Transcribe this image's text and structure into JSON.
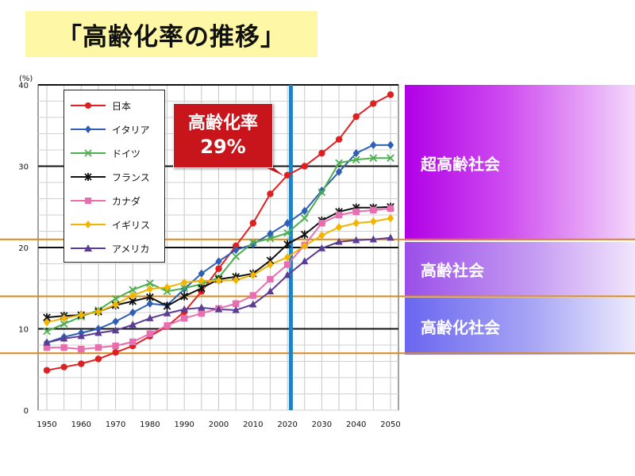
{
  "page": {
    "title": "「高齢化率の推移」"
  },
  "callout": {
    "title": "高齢化率",
    "value": "29%"
  },
  "bands": [
    {
      "label": "超高齢社会"
    },
    {
      "label": "高齢社会"
    },
    {
      "label": "高齢化社会"
    }
  ],
  "chart_data": {
    "type": "line",
    "ylabel": "(%)",
    "xlim": [
      1950,
      2050
    ],
    "ylim": [
      0,
      40
    ],
    "x_ticks": [
      1950,
      1960,
      1970,
      1980,
      1990,
      2000,
      2010,
      2020,
      2030,
      2040,
      2050
    ],
    "y_ticks": [
      0,
      10,
      20,
      30,
      40
    ],
    "threshold_lines": [
      7,
      14,
      21
    ],
    "highlight_year": 2021,
    "grid": true,
    "legend_position": "top-left",
    "x": [
      1950,
      1955,
      1960,
      1965,
      1970,
      1975,
      1980,
      1985,
      1990,
      1995,
      2000,
      2005,
      2010,
      2015,
      2020,
      2025,
      2030,
      2035,
      2040,
      2045,
      2050
    ],
    "series": [
      {
        "name": "日本",
        "color": "#e02020",
        "marker": "circle",
        "values": [
          4.9,
          5.3,
          5.7,
          6.3,
          7.1,
          7.9,
          9.1,
          10.3,
          12.1,
          14.6,
          17.4,
          20.2,
          23.0,
          26.6,
          28.9,
          30.0,
          31.6,
          33.3,
          36.1,
          37.7,
          38.8
        ]
      },
      {
        "name": "イタリア",
        "color": "#2f5fb5",
        "marker": "diamond",
        "values": [
          8.3,
          9.0,
          9.5,
          10.0,
          10.9,
          12.0,
          13.1,
          12.9,
          14.9,
          16.8,
          18.3,
          19.7,
          20.4,
          21.7,
          23.0,
          24.5,
          27.0,
          29.3,
          31.6,
          32.6,
          32.6
        ]
      },
      {
        "name": "ドイツ",
        "color": "#4caf50",
        "marker": "x",
        "values": [
          9.7,
          10.6,
          11.5,
          12.3,
          13.7,
          14.8,
          15.6,
          14.6,
          15.0,
          15.5,
          16.3,
          18.9,
          20.6,
          21.1,
          21.8,
          23.6,
          26.8,
          30.4,
          30.8,
          31.0,
          31.0
        ]
      },
      {
        "name": "フランス",
        "color": "#111111",
        "marker": "star",
        "values": [
          11.4,
          11.6,
          11.7,
          12.1,
          12.9,
          13.4,
          13.9,
          12.8,
          14.0,
          15.0,
          16.1,
          16.4,
          16.8,
          18.4,
          20.4,
          21.6,
          23.3,
          24.4,
          24.9,
          24.9,
          25.0
        ]
      },
      {
        "name": "カナダ",
        "color": "#e76fb0",
        "marker": "square",
        "values": [
          7.7,
          7.7,
          7.5,
          7.7,
          7.9,
          8.4,
          9.4,
          10.4,
          11.3,
          11.9,
          12.5,
          13.1,
          14.1,
          16.1,
          17.9,
          20.3,
          23.0,
          24.0,
          24.4,
          24.6,
          24.8
        ]
      },
      {
        "name": "イギリス",
        "color": "#f2b400",
        "marker": "diamond",
        "values": [
          10.8,
          11.3,
          11.7,
          12.1,
          13.0,
          14.1,
          14.9,
          15.1,
          15.7,
          15.9,
          15.9,
          16.0,
          16.6,
          17.9,
          18.8,
          20.2,
          21.5,
          22.5,
          23.0,
          23.2,
          23.6
        ]
      },
      {
        "name": "アメリカ",
        "color": "#5b3d94",
        "marker": "triangle",
        "values": [
          8.3,
          8.8,
          9.1,
          9.5,
          9.8,
          10.5,
          11.3,
          11.9,
          12.4,
          12.6,
          12.4,
          12.3,
          13.0,
          14.6,
          16.6,
          18.3,
          19.9,
          20.7,
          20.9,
          21.0,
          21.2
        ]
      }
    ]
  }
}
